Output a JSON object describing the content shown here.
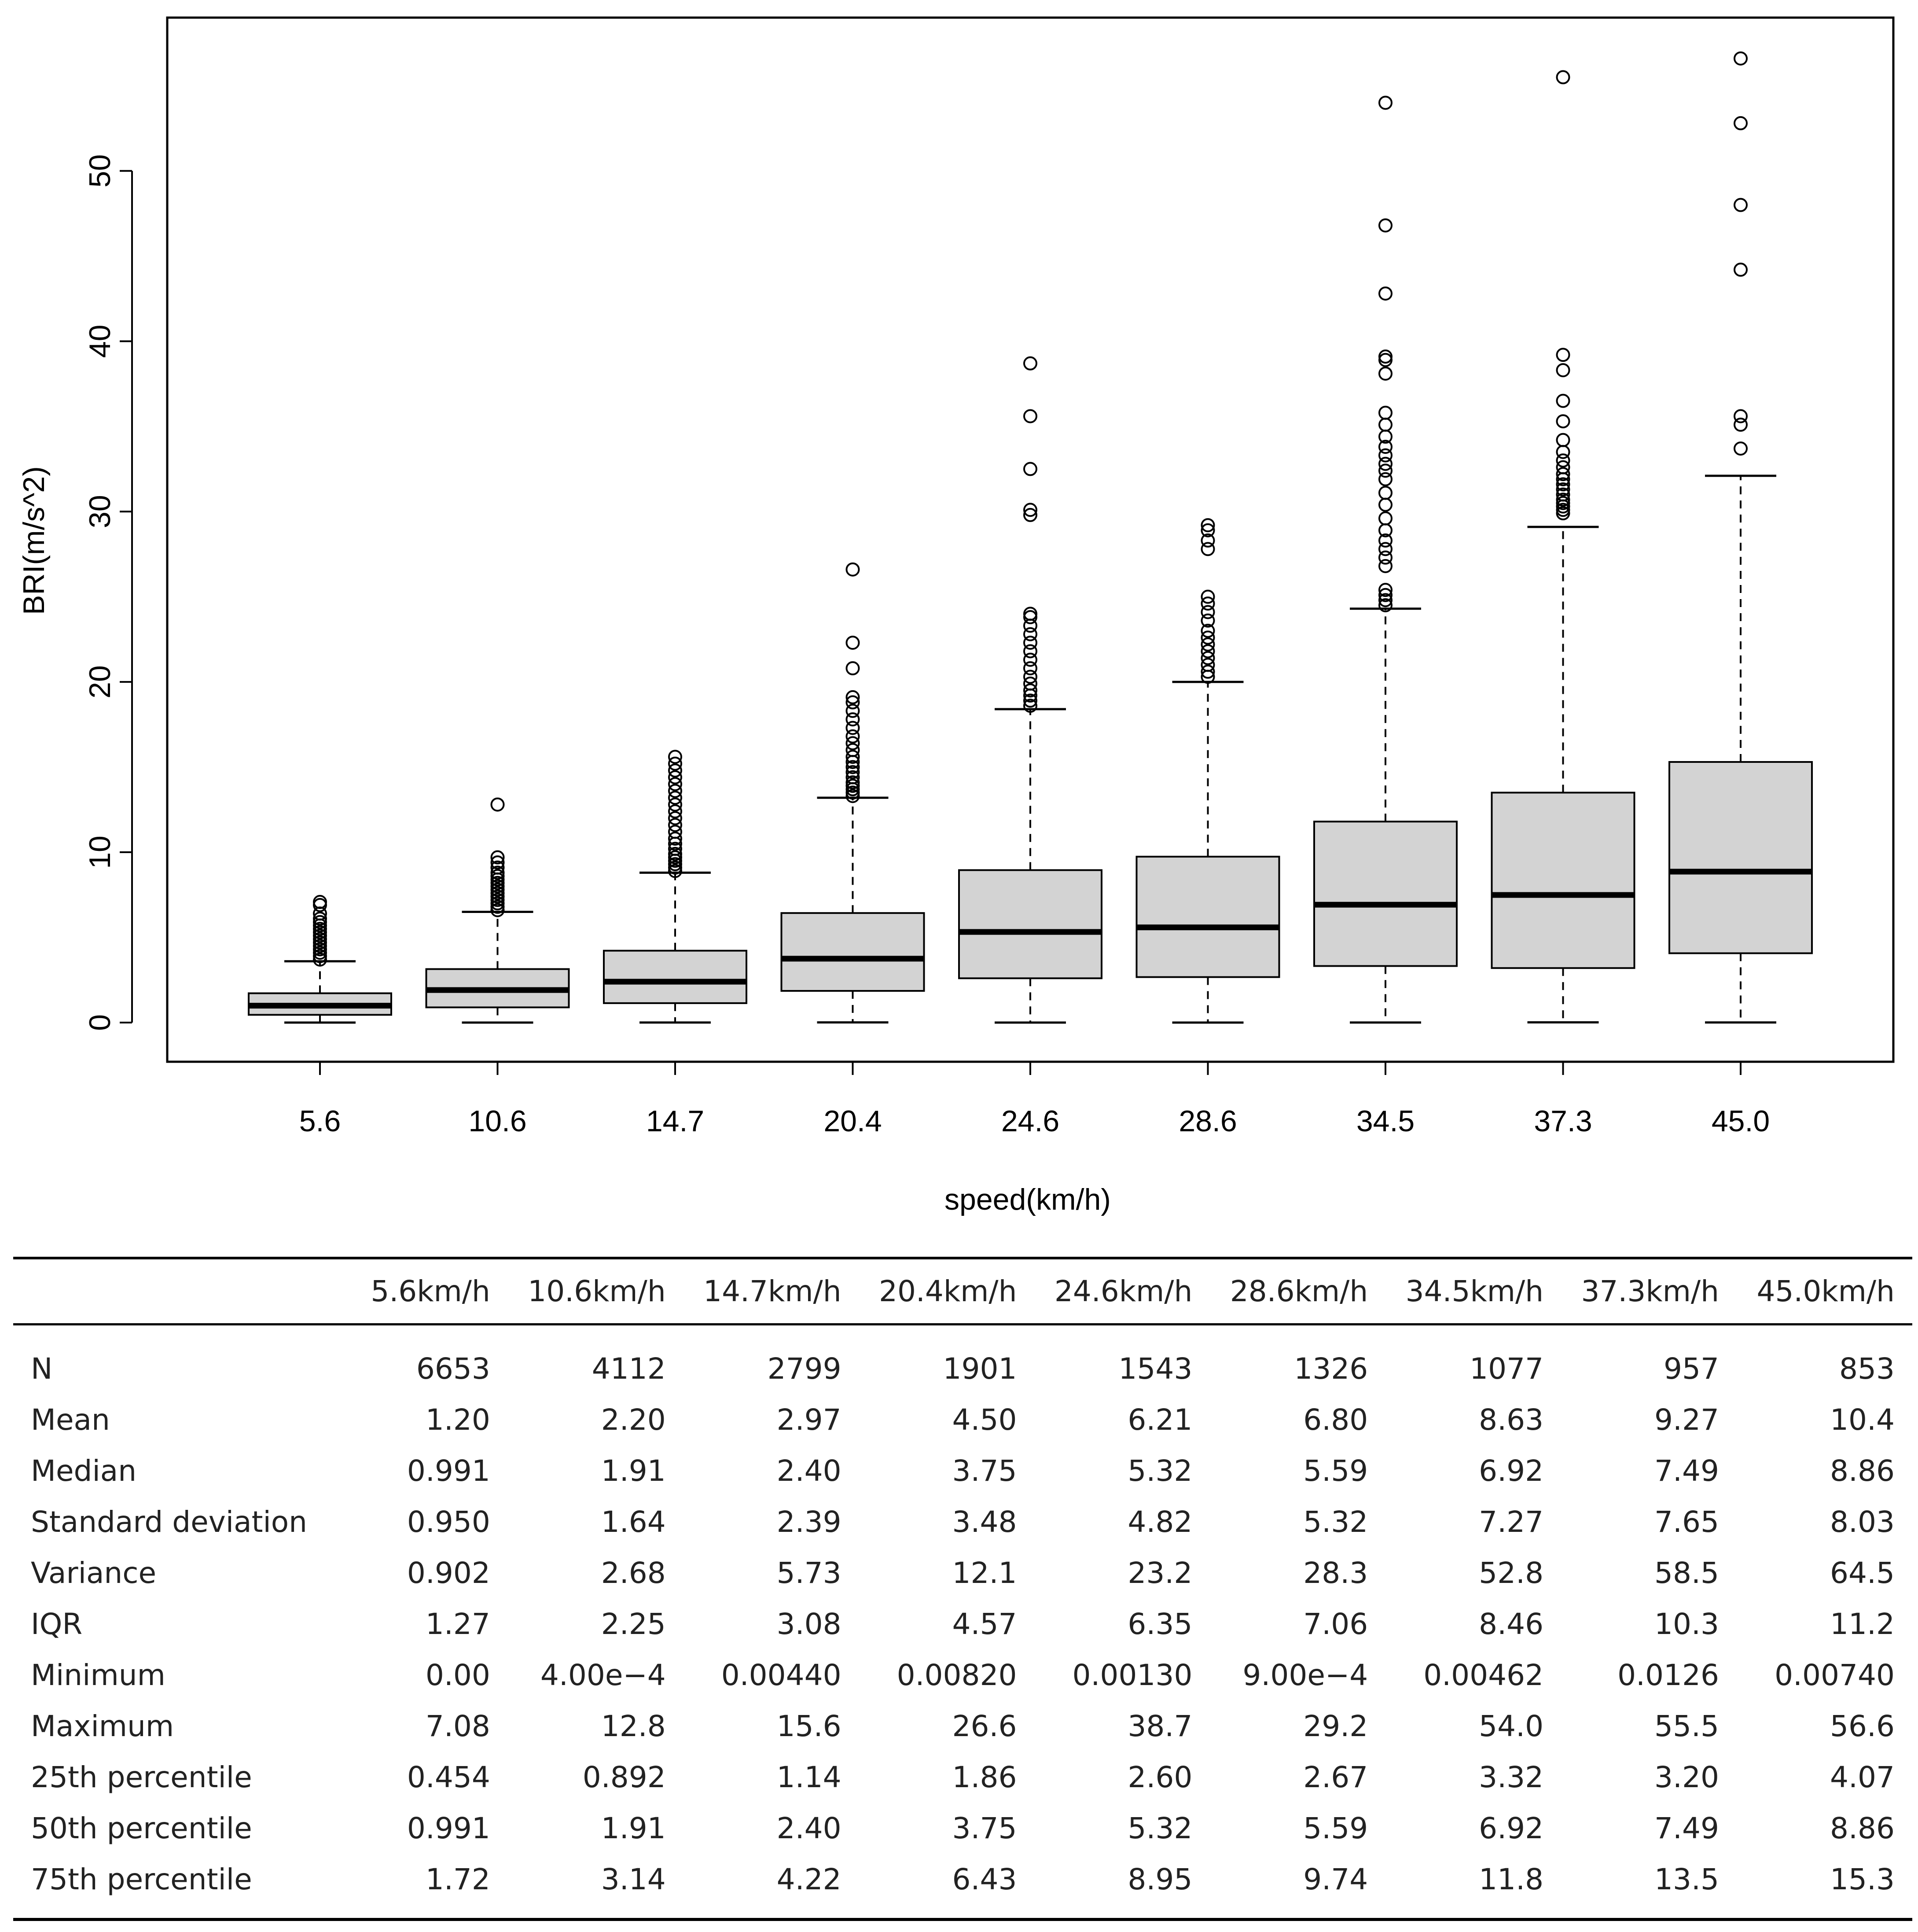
{
  "chart_data": {
    "type": "boxplot",
    "xlabel": "speed(km/h)",
    "ylabel": "BRI(m/s^2)",
    "ylim": [
      -2.3,
      59
    ],
    "yticks": [
      0,
      10,
      20,
      30,
      40,
      50
    ],
    "categories": [
      "5.6",
      "10.6",
      "14.7",
      "20.4",
      "24.6",
      "28.6",
      "34.5",
      "37.3",
      "45.0"
    ],
    "boxes": [
      {
        "whisker_low": 0.0,
        "q1": 0.454,
        "median": 0.991,
        "q3": 1.72,
        "whisker_high": 3.6,
        "outliers": [
          3.7,
          3.9,
          4.1,
          4.3,
          4.5,
          4.7,
          4.9,
          5.1,
          5.3,
          5.5,
          5.7,
          5.9,
          6.1,
          6.4,
          6.9,
          7.08
        ]
      },
      {
        "whisker_low": 0.0004,
        "q1": 0.892,
        "median": 1.91,
        "q3": 3.14,
        "whisker_high": 6.5,
        "outliers": [
          6.6,
          6.8,
          7.0,
          7.2,
          7.4,
          7.6,
          7.8,
          8.0,
          8.2,
          8.4,
          8.6,
          8.8,
          9.1,
          9.4,
          9.7,
          12.8
        ]
      },
      {
        "whisker_low": 0.0044,
        "q1": 1.14,
        "median": 2.4,
        "q3": 4.22,
        "whisker_high": 8.8,
        "outliers": [
          8.9,
          9.1,
          9.3,
          9.5,
          9.7,
          9.9,
          10.2,
          10.5,
          10.8,
          11.2,
          11.6,
          12.0,
          12.4,
          12.8,
          13.2,
          13.6,
          14.0,
          14.4,
          14.8,
          15.2,
          15.6
        ]
      },
      {
        "whisker_low": 0.0082,
        "q1": 1.86,
        "median": 3.75,
        "q3": 6.43,
        "whisker_high": 13.2,
        "outliers": [
          13.3,
          13.5,
          13.7,
          13.9,
          14.1,
          14.4,
          14.7,
          15.0,
          15.3,
          15.6,
          16.0,
          16.4,
          16.8,
          17.3,
          17.8,
          18.3,
          18.8,
          19.1,
          20.8,
          22.3,
          26.6
        ]
      },
      {
        "whisker_low": 0.0013,
        "q1": 2.6,
        "median": 5.32,
        "q3": 8.95,
        "whisker_high": 18.4,
        "outliers": [
          18.6,
          18.9,
          19.2,
          19.5,
          19.9,
          20.3,
          20.8,
          21.3,
          21.8,
          22.3,
          22.8,
          23.3,
          23.8,
          24.0,
          29.8,
          30.1,
          32.5,
          35.6,
          38.7
        ]
      },
      {
        "whisker_low": 0.0009,
        "q1": 2.67,
        "median": 5.59,
        "q3": 9.74,
        "whisker_high": 20.0,
        "outliers": [
          20.3,
          20.6,
          21.0,
          21.4,
          21.8,
          22.2,
          22.6,
          23.0,
          23.6,
          24.1,
          24.6,
          25.0,
          27.8,
          28.3,
          28.9,
          29.2
        ]
      },
      {
        "whisker_low": 0.00462,
        "q1": 3.32,
        "median": 6.92,
        "q3": 11.8,
        "whisker_high": 24.3,
        "outliers": [
          24.5,
          24.8,
          25.1,
          25.4,
          26.8,
          27.3,
          27.8,
          28.3,
          28.9,
          29.6,
          30.4,
          31.1,
          31.9,
          32.4,
          32.8,
          33.3,
          33.8,
          34.4,
          35.1,
          35.8,
          38.1,
          38.9,
          39.1,
          42.8,
          46.8,
          54.0
        ]
      },
      {
        "whisker_low": 0.0126,
        "q1": 3.2,
        "median": 7.49,
        "q3": 13.5,
        "whisker_high": 29.1,
        "outliers": [
          29.9,
          30.1,
          30.3,
          30.5,
          30.7,
          31.0,
          31.3,
          31.6,
          31.9,
          32.2,
          32.6,
          33.0,
          33.5,
          34.2,
          35.3,
          36.5,
          38.3,
          39.2,
          55.5
        ]
      },
      {
        "whisker_low": 0.0074,
        "q1": 4.07,
        "median": 8.86,
        "q3": 15.3,
        "whisker_high": 32.1,
        "outliers": [
          33.7,
          35.1,
          35.6,
          44.2,
          48.0,
          52.8,
          56.6
        ]
      }
    ]
  },
  "table": {
    "headers": [
      "",
      "5.6km/h",
      "10.6km/h",
      "14.7km/h",
      "20.4km/h",
      "24.6km/h",
      "28.6km/h",
      "34.5km/h",
      "37.3km/h",
      "45.0km/h"
    ],
    "rows": [
      {
        "label": "N",
        "values": [
          "6653",
          "4112",
          "2799",
          "1901",
          "1543",
          "1326",
          "1077",
          "957",
          "853"
        ]
      },
      {
        "label": "Mean",
        "values": [
          "1.20",
          "2.20",
          "2.97",
          "4.50",
          "6.21",
          "6.80",
          "8.63",
          "9.27",
          "10.4"
        ]
      },
      {
        "label": "Median",
        "values": [
          "0.991",
          "1.91",
          "2.40",
          "3.75",
          "5.32",
          "5.59",
          "6.92",
          "7.49",
          "8.86"
        ]
      },
      {
        "label": "Standard deviation",
        "values": [
          "0.950",
          "1.64",
          "2.39",
          "3.48",
          "4.82",
          "5.32",
          "7.27",
          "7.65",
          "8.03"
        ]
      },
      {
        "label": "Variance",
        "values": [
          "0.902",
          "2.68",
          "5.73",
          "12.1",
          "23.2",
          "28.3",
          "52.8",
          "58.5",
          "64.5"
        ]
      },
      {
        "label": "IQR",
        "values": [
          "1.27",
          "2.25",
          "3.08",
          "4.57",
          "6.35",
          "7.06",
          "8.46",
          "10.3",
          "11.2"
        ]
      },
      {
        "label": "Minimum",
        "values": [
          "0.00",
          "4.00e−4",
          "0.00440",
          "0.00820",
          "0.00130",
          "9.00e−4",
          "0.00462",
          "0.0126",
          "0.00740"
        ]
      },
      {
        "label": "Maximum",
        "values": [
          "7.08",
          "12.8",
          "15.6",
          "26.6",
          "38.7",
          "29.2",
          "54.0",
          "55.5",
          "56.6"
        ]
      },
      {
        "label": "25th percentile",
        "values": [
          "0.454",
          "0.892",
          "1.14",
          "1.86",
          "2.60",
          "2.67",
          "3.32",
          "3.20",
          "4.07"
        ]
      },
      {
        "label": "50th percentile",
        "values": [
          "0.991",
          "1.91",
          "2.40",
          "3.75",
          "5.32",
          "5.59",
          "6.92",
          "7.49",
          "8.86"
        ]
      },
      {
        "label": "75th percentile",
        "values": [
          "1.72",
          "3.14",
          "4.22",
          "6.43",
          "8.95",
          "9.74",
          "11.8",
          "13.5",
          "15.3"
        ]
      }
    ]
  }
}
